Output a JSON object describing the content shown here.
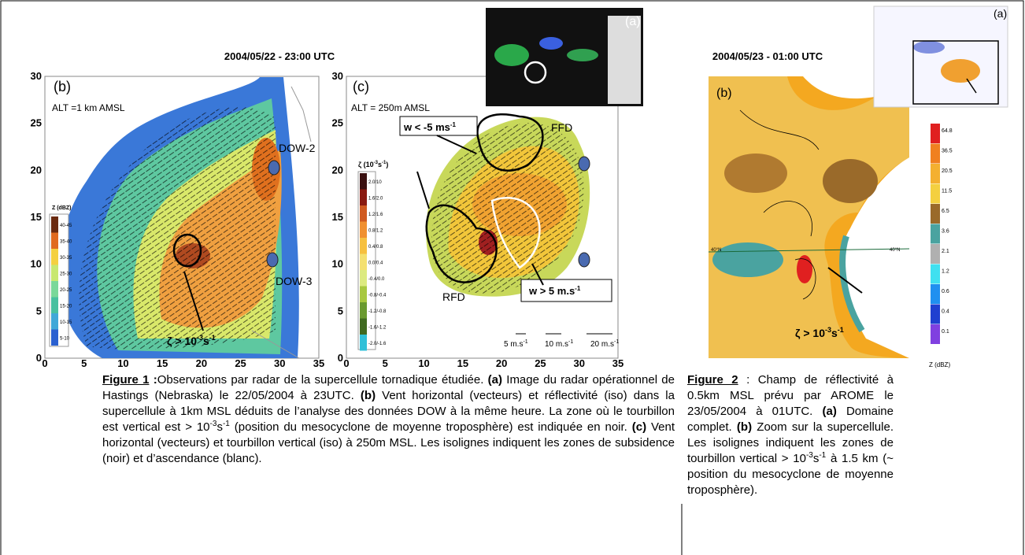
{
  "figure1": {
    "heading": "2004/05/22 - 23:00 UTC",
    "inset_label": "(a)",
    "panel_b": {
      "label": "(b)",
      "alt": "ALT =1 km AMSL",
      "xticks": [
        "0",
        "5",
        "10",
        "15",
        "20",
        "25",
        "30",
        "35"
      ],
      "yticks": [
        "0",
        "5",
        "10",
        "15",
        "20",
        "25",
        "30"
      ],
      "legend_title": "Z (dBZ)",
      "legend": [
        "40-45",
        "35-40",
        "30-35",
        "25-30",
        "20-25",
        "15-20",
        "10-15",
        "5-10"
      ],
      "radars": [
        "DOW-2",
        "DOW-3"
      ],
      "annotation": [
        "ζ > 10",
        "-3",
        "s",
        "-1"
      ]
    },
    "panel_c": {
      "label": "(c)",
      "alt": "ALT = 250m AMSL",
      "xticks": [
        "0",
        "5",
        "10",
        "15",
        "20",
        "25",
        "30",
        "35"
      ],
      "yticks": [
        "0",
        "5",
        "10",
        "15",
        "20",
        "25",
        "30"
      ],
      "legend_title": [
        "ζ (10",
        "-3",
        "s",
        "-1",
        ")"
      ],
      "legend": [
        "2.0/10",
        "1.6/2.0",
        "1.2/1.6",
        "0.8/1.2",
        "0.4/0.8",
        "0.0/0.4",
        "-0.4/0.0",
        "-0.8/-0.4",
        "-1.2/-0.8",
        "-1.6/-1.2",
        "-2.0/-1.6"
      ],
      "downdraft": [
        "w < -5 ms",
        "-1"
      ],
      "updraft": [
        "w > 5 m.s",
        "-1"
      ],
      "ffd": "FFD",
      "rfd": "RFD",
      "scale": [
        [
          "5 m.s",
          "-1"
        ],
        [
          "10 m.s",
          "-1"
        ],
        [
          "20 m.s",
          "-1"
        ]
      ]
    },
    "caption": [
      "Figure 1",
      " :",
      "Observations par radar de la supercellule tornadique étudiée. ",
      "(a)",
      " Image du radar opérationnel de Hastings (Nebraska) le 22/05/2004 à 23UTC. ",
      "(b)",
      " Vent horizontal (vecteurs) et réflectivité (iso) dans la supercellule à 1km MSL déduits de l’analyse des données DOW à la même heure. La zone où le tourbillon est vertical est > 10",
      "-3",
      "s",
      "-1",
      " (position du mesocyclone de moyenne troposphère) est indiquée en noir. ",
      "(c)",
      " Vent horizontal (vecteurs) et tourbillon vertical (iso) à 250m MSL. Les isolignes indiquent les zones de subsidence (noir) et d’ascendance (blanc)."
    ]
  },
  "figure2": {
    "heading": "2004/05/23 - 01:00 UTC",
    "inset_label": "(a)",
    "panel_label": "(b)",
    "lat_label": "40°N",
    "legend": [
      "64.8",
      "36.5",
      "20.5",
      "11.5",
      "6.5",
      "3.6",
      "2.1",
      "1.2",
      "0.6",
      "0.4",
      "0.1"
    ],
    "legend_title": "Z (dBZ)",
    "annotation": [
      "ζ > 10",
      "-3",
      "s",
      "-1"
    ],
    "caption": [
      "Figure 2",
      " : Champ de réflectivité à 0.5km MSL prévu par AROME le 23/05/2004 à 01UTC. ",
      "(a)",
      " Domaine complet. ",
      "(b)",
      " Zoom sur la supercellule. Les isolignes indiquent les zones de tourbillon vertical > 10",
      "-3",
      "s",
      "-1",
      " à 1.5 km (~ position du mesocyclone de moyenne troposphère)."
    ]
  }
}
